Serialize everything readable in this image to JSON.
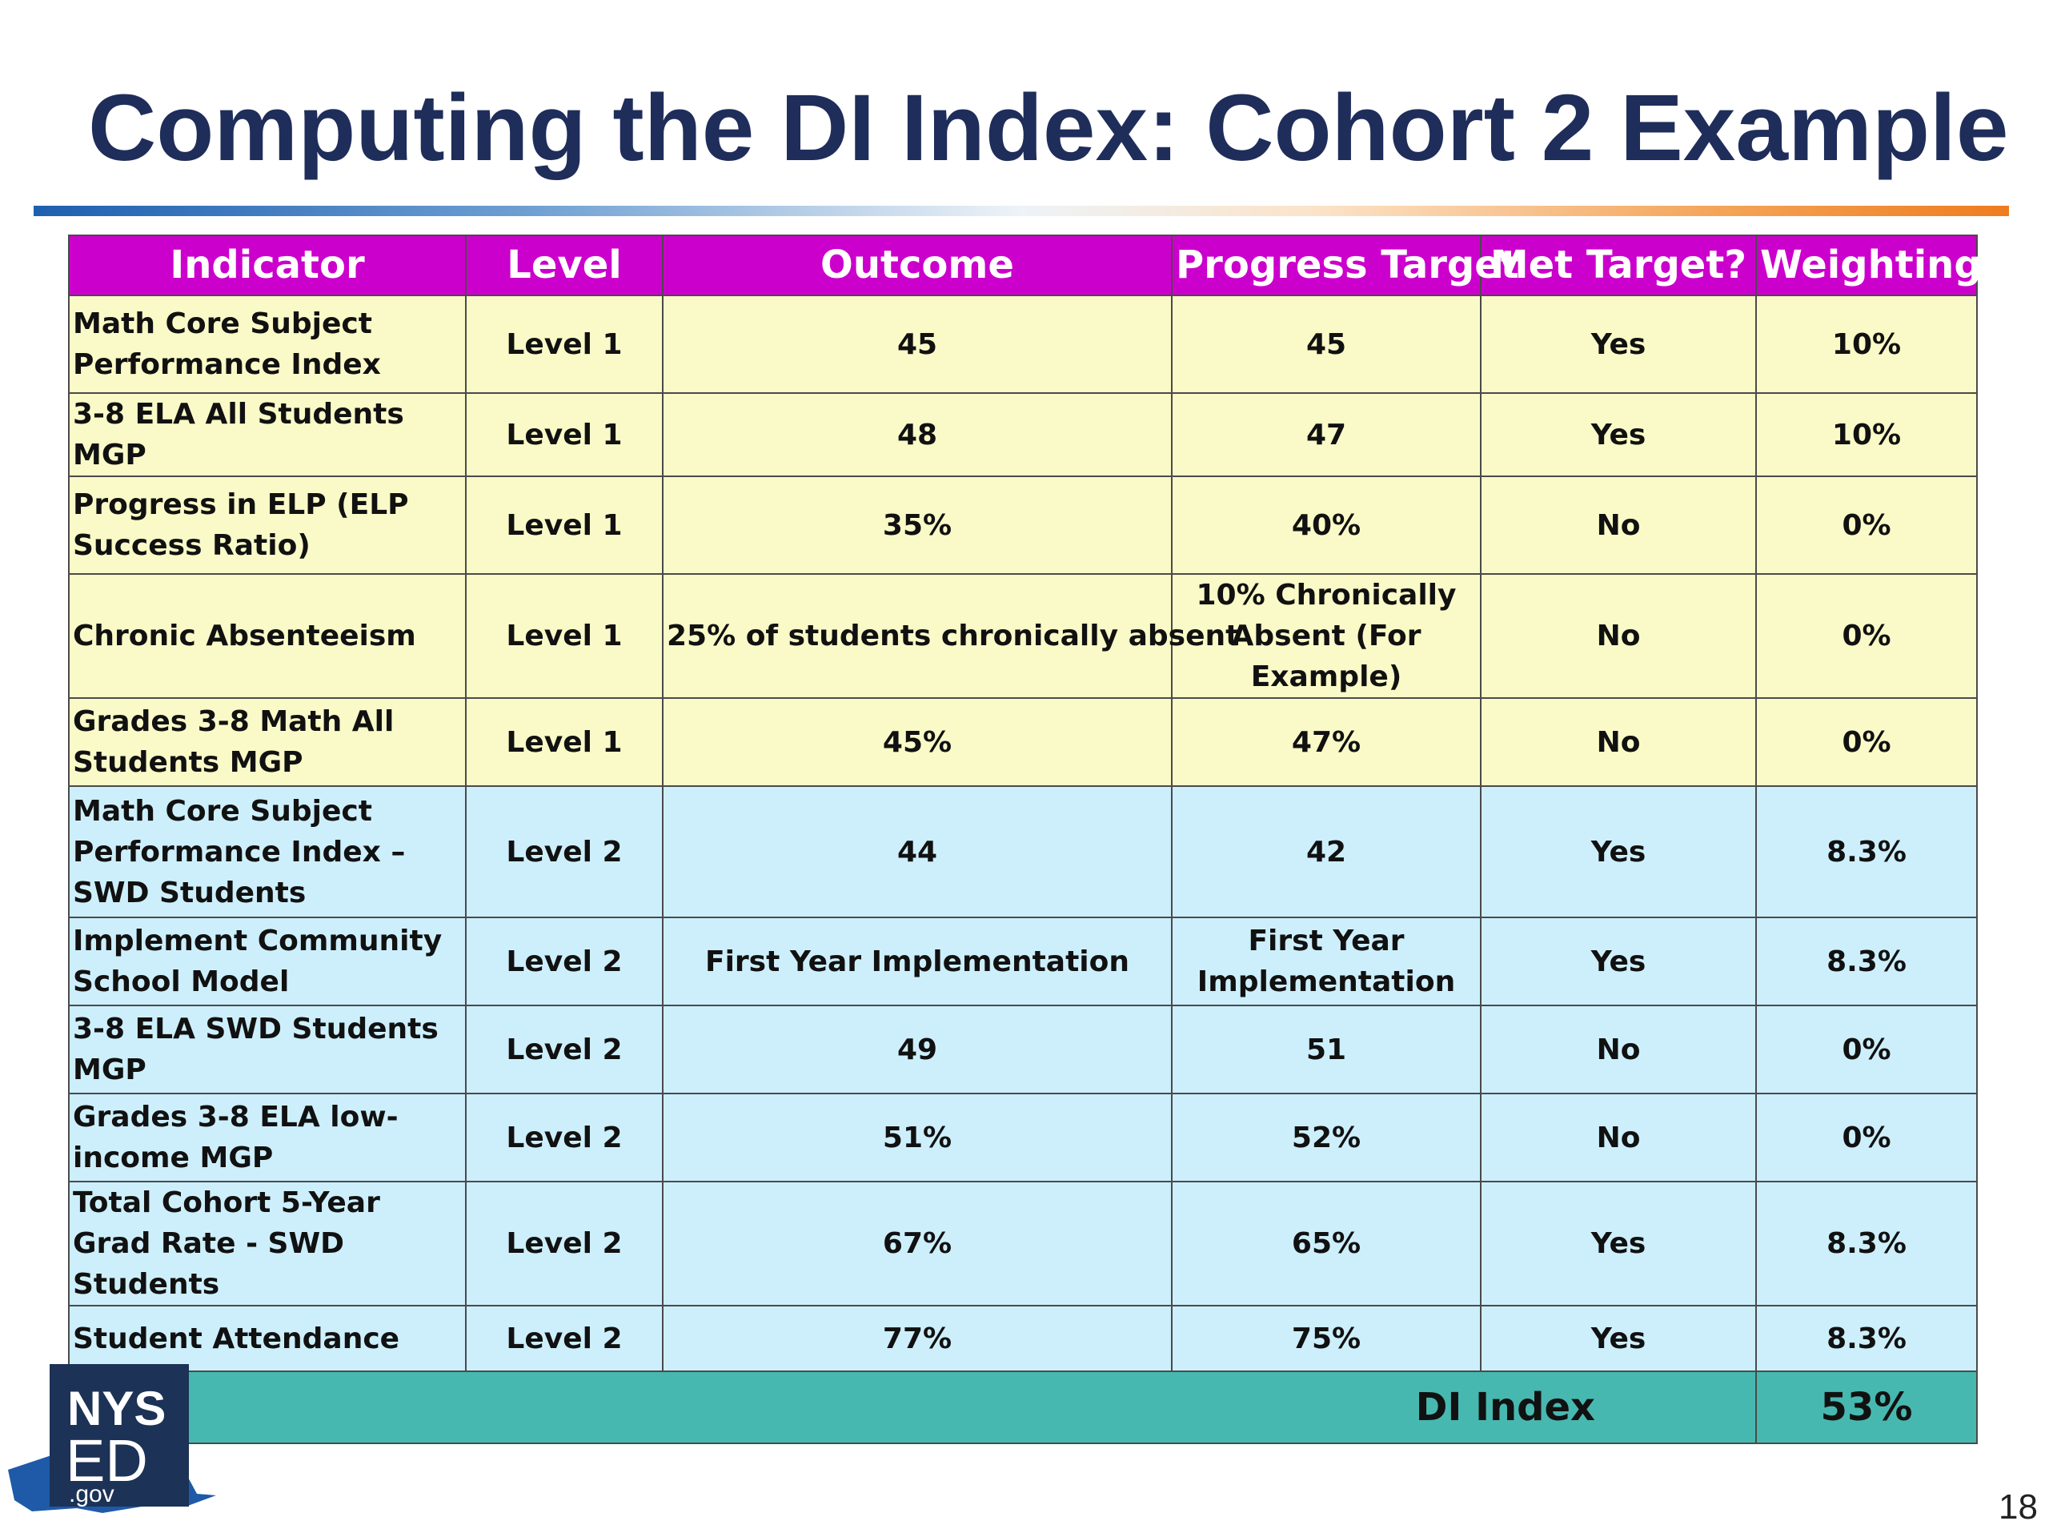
{
  "slide": {
    "title": "Computing the DI Index: Cohort 2 Example",
    "page_number": "18"
  },
  "table": {
    "headers": [
      "Indicator",
      "Level",
      "Outcome",
      "Progress Target",
      "Met Target?",
      "Weighting"
    ],
    "rows": [
      {
        "indicator": "Math Core Subject Performance Index",
        "level": "Level 1",
        "outcome": "45",
        "target": "45",
        "met": "Yes",
        "weighting": "10%"
      },
      {
        "indicator": "3-8 ELA All Students MGP",
        "level": "Level 1",
        "outcome": "48",
        "target": "47",
        "met": "Yes",
        "weighting": "10%"
      },
      {
        "indicator": "Progress in ELP (ELP Success Ratio)",
        "level": "Level 1",
        "outcome": "35%",
        "target": "40%",
        "met": "No",
        "weighting": "0%"
      },
      {
        "indicator": "Chronic Absenteeism",
        "level": "Level 1",
        "outcome": "25% of students chronically absent",
        "target": "10% Chronically Absent (For Example)",
        "met": "No",
        "weighting": "0%"
      },
      {
        "indicator": "Grades 3-8 Math All Students MGP",
        "level": "Level 1",
        "outcome": "45%",
        "target": "47%",
        "met": "No",
        "weighting": "0%"
      },
      {
        "indicator": "Math Core Subject Performance Index – SWD Students",
        "level": "Level 2",
        "outcome": "44",
        "target": "42",
        "met": "Yes",
        "weighting": "8.3%"
      },
      {
        "indicator": "Implement Community School Model",
        "level": "Level 2",
        "outcome": "First Year Implementation",
        "target": "First Year Implementation",
        "met": "Yes",
        "weighting": "8.3%"
      },
      {
        "indicator": "3-8 ELA SWD Students MGP",
        "level": "Level 2",
        "outcome": "49",
        "target": "51",
        "met": "No",
        "weighting": "0%"
      },
      {
        "indicator": "Grades 3-8 ELA low-income MGP",
        "level": "Level 2",
        "outcome": "51%",
        "target": "52%",
        "met": "No",
        "weighting": "0%"
      },
      {
        "indicator": "Total Cohort 5-Year Grad Rate - SWD Students",
        "level": "Level 2",
        "outcome": "67%",
        "target": "65%",
        "met": "Yes",
        "weighting": "8.3%"
      },
      {
        "indicator": "Student Attendance",
        "level": "Level 2",
        "outcome": "77%",
        "target": "75%",
        "met": "Yes",
        "weighting": "8.3%"
      }
    ],
    "total": {
      "label": "DI Index",
      "value": "53%"
    }
  },
  "logo": {
    "line1": "NYS",
    "line2": "ED",
    "line3": ".gov"
  },
  "colors": {
    "title": "#1f2d5a",
    "header_bg": "#cc00cc",
    "level1_bg": "#fafac8",
    "level2_bg": "#cdeffc",
    "total_bg": "#47b8b0",
    "logo_state": "#1e5aa8",
    "logo_box": "#1c3256"
  }
}
